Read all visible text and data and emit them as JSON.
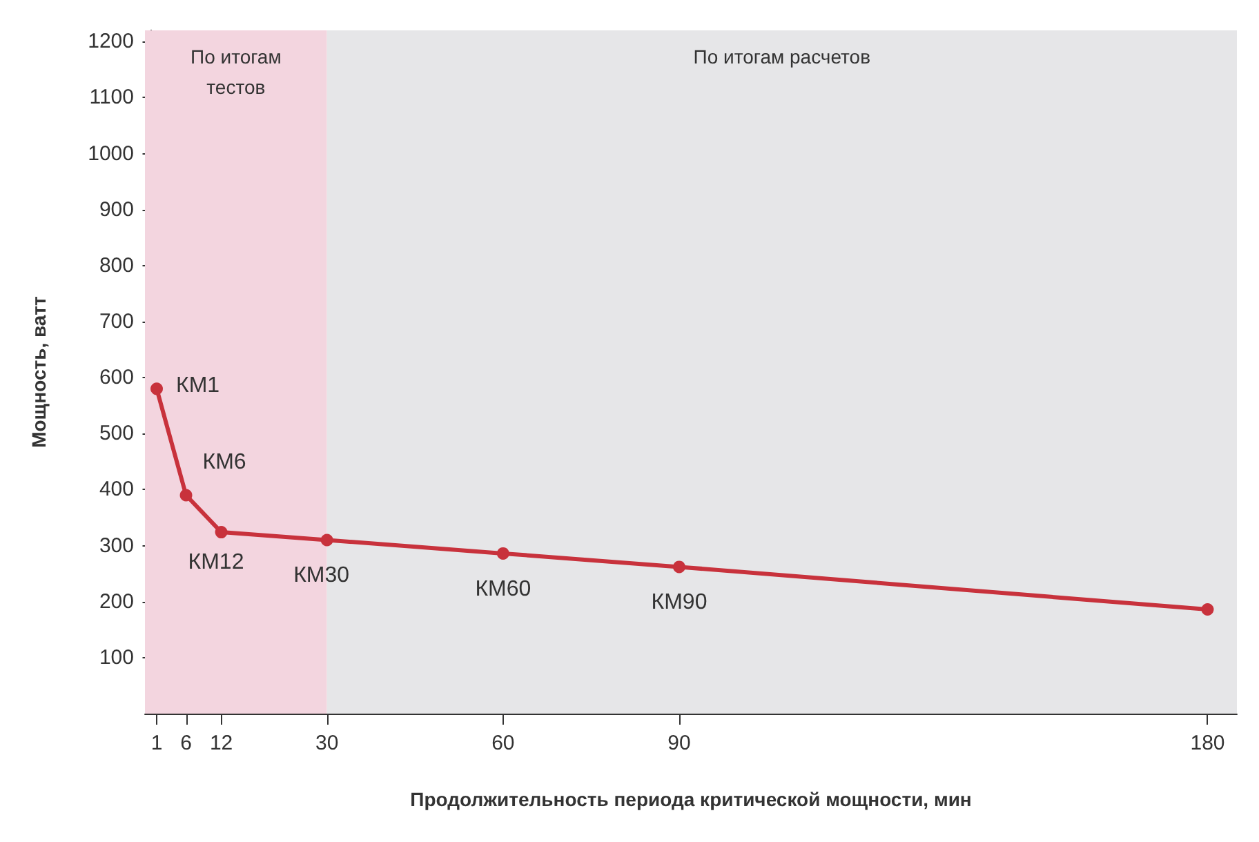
{
  "chart_data": {
    "type": "line",
    "xlabel": "Продолжительность периода критической мощности, мин",
    "ylabel": "Мощность, ватт",
    "x": [
      1,
      6,
      12,
      30,
      60,
      90,
      180
    ],
    "series": [
      {
        "color": "#c8323c",
        "values": [
          580,
          390,
          324,
          310,
          286,
          262,
          186
        ]
      }
    ],
    "xlim": [
      -1,
      185
    ],
    "xticks": [
      1,
      6,
      12,
      30,
      60,
      90,
      180
    ],
    "ylim": [
      0,
      1220
    ],
    "yticks": [
      100,
      200,
      300,
      400,
      500,
      600,
      700,
      800,
      900,
      1000,
      1100,
      1200
    ],
    "bands": [
      {
        "axis": "x",
        "from": -1,
        "to": 30,
        "label": "По итогам\nтестов",
        "color": "#f3d5df"
      },
      {
        "axis": "x",
        "from": 30,
        "to": 185,
        "label": "По итогам расчетов",
        "color": "#e6e6e8"
      }
    ],
    "annotations": [
      {
        "text": "КМ1",
        "x": 1,
        "y": 580
      },
      {
        "text": "КМ6",
        "x": 6,
        "y": 390
      },
      {
        "text": "КМ12",
        "x": 12,
        "y": 324
      },
      {
        "text": "КМ30",
        "x": 30,
        "y": 310
      },
      {
        "text": "КМ60",
        "x": 60,
        "y": 286
      },
      {
        "text": "КМ90",
        "x": 90,
        "y": 262
      }
    ],
    "marker": "circle",
    "grid": false
  }
}
